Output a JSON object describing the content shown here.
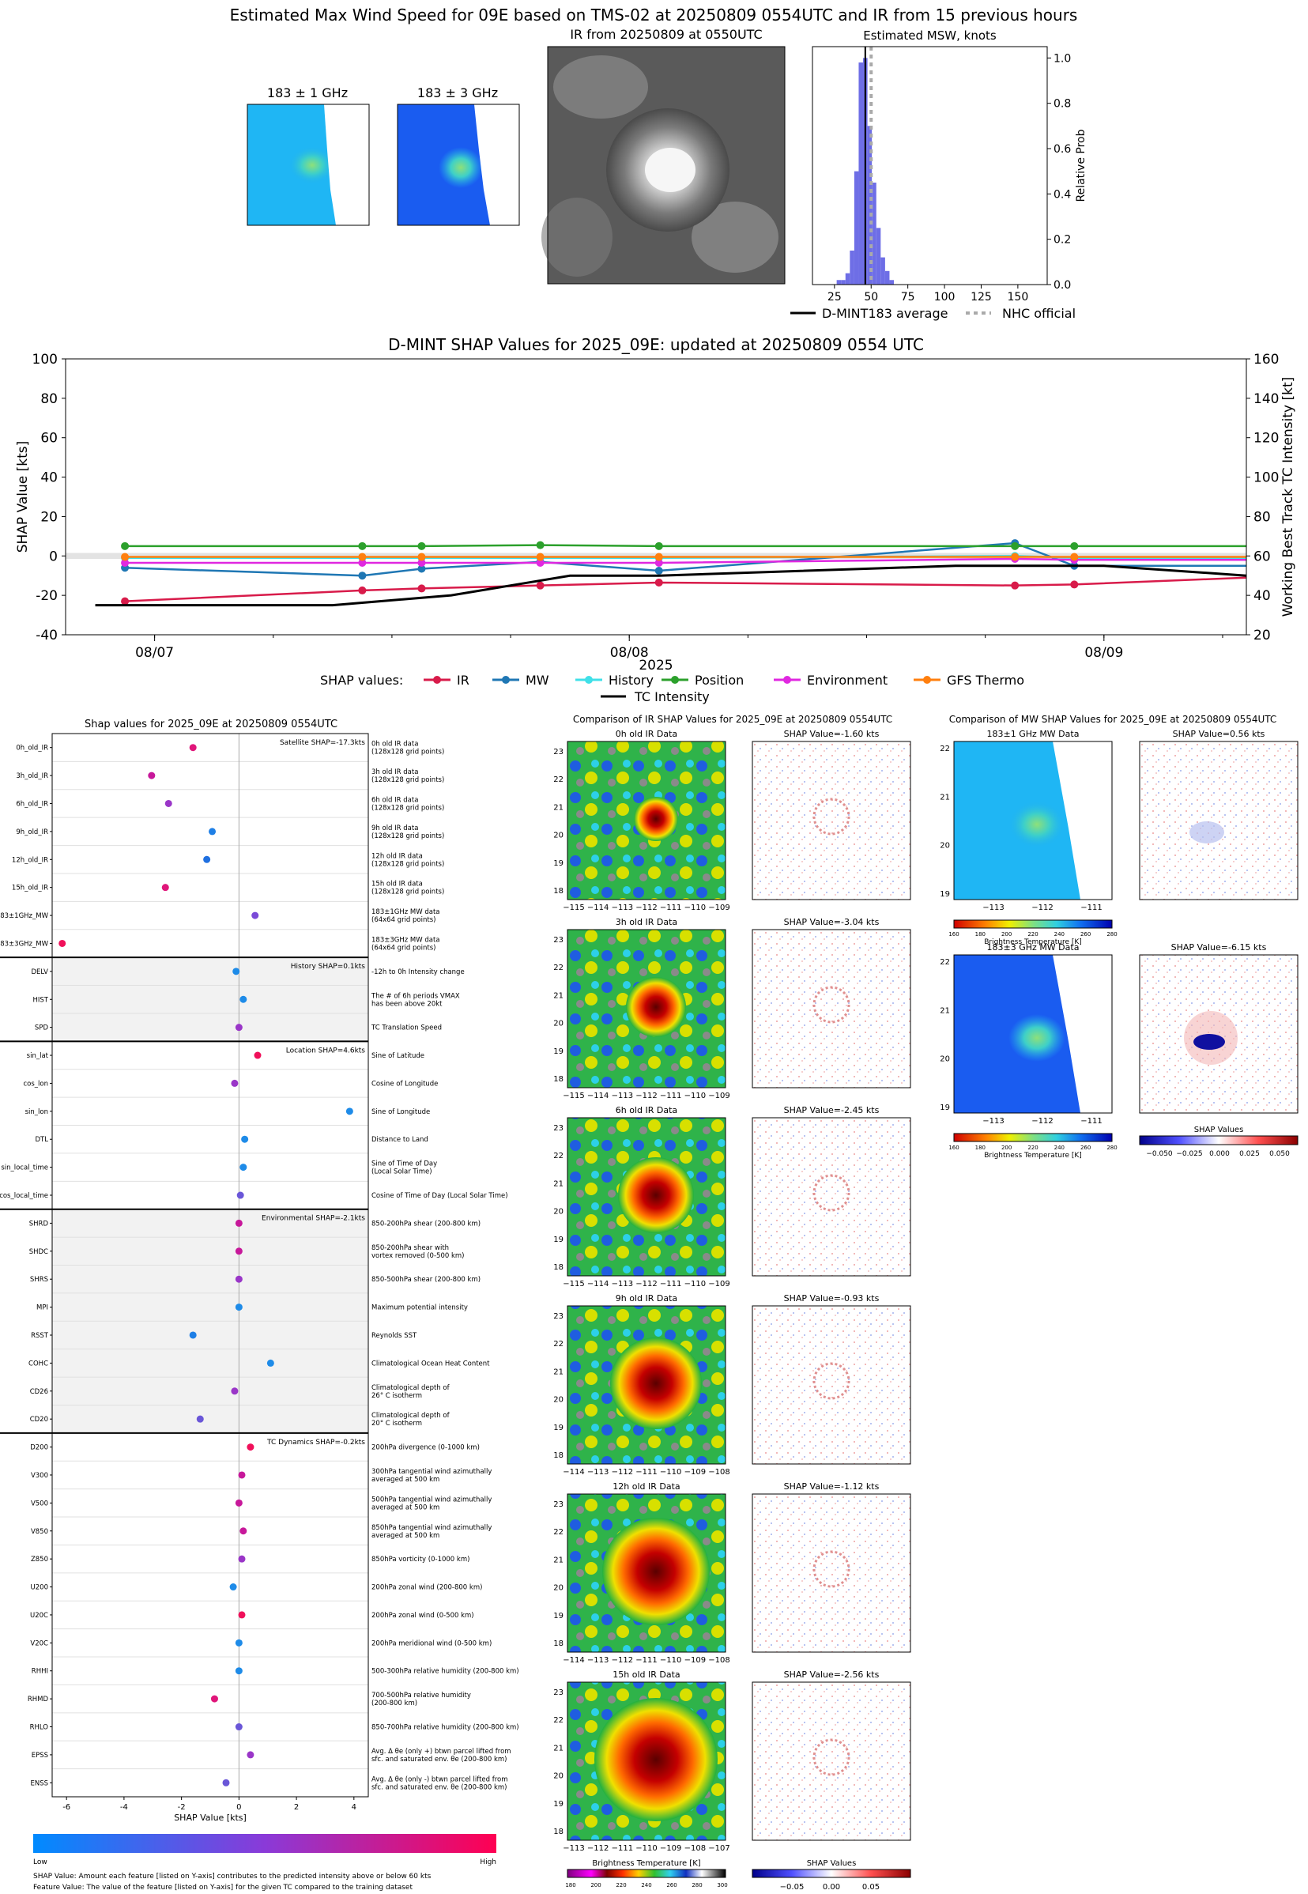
{
  "top": {
    "title": "Estimated Max Wind Speed for 09E based on TMS-02 at 20250809 0554UTC and IR from 15 previous hours",
    "mw1_title": "183 ± 1 GHz",
    "mw3_title": "183 ± 3 GHz",
    "ir_title": "IR from 20250809 at 0550UTC"
  },
  "shap_ts_legend": {
    "label": "SHAP values:",
    "items": [
      "IR",
      "MW",
      "History",
      "Position",
      "Environment",
      "GFS Thermo"
    ],
    "intensity": "TC Intensity"
  },
  "bar": {
    "title": "Shap values for 2025_09E at 20250809 0554UTC",
    "groups": [
      {
        "title": "Satellite SHAP=-17.3kts",
        "start": 0,
        "end": 8,
        "shaded": false
      },
      {
        "title": "History SHAP=0.1kts",
        "start": 8,
        "end": 11,
        "shaded": true
      },
      {
        "title": "Location SHAP=4.6kts",
        "start": 11,
        "end": 17,
        "shaded": false
      },
      {
        "title": "Environmental SHAP=-2.1kts",
        "start": 17,
        "end": 25,
        "shaded": true
      },
      {
        "title": "TC Dynamics SHAP=-0.2kts",
        "start": 25,
        "end": 38,
        "shaded": false
      }
    ],
    "features": [
      {
        "name": "0h_old_IR",
        "desc": [
          "0h old IR data",
          "(128x128 grid points)"
        ],
        "value": -1.6,
        "color": "#e0167a"
      },
      {
        "name": "3h_old_IR",
        "desc": [
          "3h old IR data",
          "(128x128 grid points)"
        ],
        "value": -3.04,
        "color": "#c7189a"
      },
      {
        "name": "6h_old_IR",
        "desc": [
          "6h old IR data",
          "(128x128 grid points)"
        ],
        "value": -2.45,
        "color": "#9a36c8"
      },
      {
        "name": "9h_old_IR",
        "desc": [
          "9h old IR data",
          "(128x128 grid points)"
        ],
        "value": -0.93,
        "color": "#1e7fe6"
      },
      {
        "name": "12h_old_IR",
        "desc": [
          "12h old IR data",
          "(128x128 grid points)"
        ],
        "value": -1.12,
        "color": "#2070e0"
      },
      {
        "name": "15h_old_IR",
        "desc": [
          "15h old IR data",
          "(128x128 grid points)"
        ],
        "value": -2.56,
        "color": "#e0167a"
      },
      {
        "name": "183±1GHz_MW",
        "desc": [
          "183±1GHz MW data",
          "(64x64 grid points)"
        ],
        "value": 0.56,
        "color": "#7a4ad8"
      },
      {
        "name": "183±3GHz_MW",
        "desc": [
          "183±3GHz MW data",
          "(64x64 grid points)"
        ],
        "value": -6.15,
        "color": "#f0105a"
      },
      {
        "name": "DELV",
        "desc": [
          "-12h to 0h Intensity change"
        ],
        "value": -0.1,
        "color": "#1e8be8"
      },
      {
        "name": "HIST",
        "desc": [
          "The # of 6h periods VMAX",
          "has been above 20kt"
        ],
        "value": 0.15,
        "color": "#1e8be8"
      },
      {
        "name": "SPD",
        "desc": [
          "TC Translation Speed"
        ],
        "value": 0.0,
        "color": "#9a36c8"
      },
      {
        "name": "sin_lat",
        "desc": [
          "Sine of Latitude"
        ],
        "value": 0.65,
        "color": "#f0105a"
      },
      {
        "name": "cos_lon",
        "desc": [
          "Cosine of Longitude"
        ],
        "value": -0.15,
        "color": "#9a36c8"
      },
      {
        "name": "sin_lon",
        "desc": [
          "Sine of Longitude"
        ],
        "value": 3.85,
        "color": "#1e8be8"
      },
      {
        "name": "DTL",
        "desc": [
          "Distance to Land"
        ],
        "value": 0.2,
        "color": "#1e8be8"
      },
      {
        "name": "sin_local_time",
        "desc": [
          "Sine of Time of Day",
          "(Local Solar Time)"
        ],
        "value": 0.15,
        "color": "#1e8be8"
      },
      {
        "name": "cos_local_time",
        "desc": [
          "Cosine of Time of Day (Local Solar Time)"
        ],
        "value": 0.05,
        "color": "#6a56d8"
      },
      {
        "name": "SHRD",
        "desc": [
          "850-200hPa shear (200-800 km)"
        ],
        "value": 0.0,
        "color": "#c7189a"
      },
      {
        "name": "SHDC",
        "desc": [
          "850-200hPa shear with",
          "vortex removed (0-500 km)"
        ],
        "value": 0.0,
        "color": "#c7189a"
      },
      {
        "name": "SHRS",
        "desc": [
          "850-500hPa shear (200-800 km)"
        ],
        "value": 0.0,
        "color": "#9a36c8"
      },
      {
        "name": "MPI",
        "desc": [
          "Maximum potential intensity"
        ],
        "value": 0.0,
        "color": "#1e8be8"
      },
      {
        "name": "RSST",
        "desc": [
          "Reynolds SST"
        ],
        "value": -1.6,
        "color": "#1e7fe6"
      },
      {
        "name": "COHC",
        "desc": [
          "Climatological Ocean Heat Content"
        ],
        "value": 1.1,
        "color": "#1e8be8"
      },
      {
        "name": "CD26",
        "desc": [
          "Climatological depth of",
          "26° C isotherm"
        ],
        "value": -0.15,
        "color": "#9a36c8"
      },
      {
        "name": "CD20",
        "desc": [
          "Climatological depth of",
          "20° C isotherm"
        ],
        "value": -1.35,
        "color": "#6a56d8"
      },
      {
        "name": "D200",
        "desc": [
          "200hPa divergence (0-1000 km)"
        ],
        "value": 0.4,
        "color": "#f0105a"
      },
      {
        "name": "V300",
        "desc": [
          "300hPa tangential wind azimuthally",
          "averaged at 500 km"
        ],
        "value": 0.1,
        "color": "#c7189a"
      },
      {
        "name": "V500",
        "desc": [
          "500hPa tangential wind azimuthally",
          "averaged at 500 km"
        ],
        "value": 0.0,
        "color": "#c7189a"
      },
      {
        "name": "V850",
        "desc": [
          "850hPa tangential wind azimuthally",
          "averaged at 500 km"
        ],
        "value": 0.15,
        "color": "#c7189a"
      },
      {
        "name": "Z850",
        "desc": [
          "850hPa vorticity (0-1000 km)"
        ],
        "value": 0.1,
        "color": "#9a36c8"
      },
      {
        "name": "U200",
        "desc": [
          "200hPa zonal wind (200-800 km)"
        ],
        "value": -0.2,
        "color": "#1e8be8"
      },
      {
        "name": "U20C",
        "desc": [
          "200hPa zonal wind (0-500 km)"
        ],
        "value": 0.1,
        "color": "#f0105a"
      },
      {
        "name": "V20C",
        "desc": [
          "200hPa meridional wind (0-500 km)"
        ],
        "value": 0.0,
        "color": "#1e8be8"
      },
      {
        "name": "RHHI",
        "desc": [
          "500-300hPa relative humidity (200-800 km)"
        ],
        "value": 0.0,
        "color": "#1e8be8"
      },
      {
        "name": "RHMD",
        "desc": [
          "700-500hPa relative humidity",
          "(200-800 km)"
        ],
        "value": -0.85,
        "color": "#e0167a"
      },
      {
        "name": "RHLO",
        "desc": [
          "850-700hPa relative humidity (200-800 km)"
        ],
        "value": 0.0,
        "color": "#6a56d8"
      },
      {
        "name": "EPSS",
        "desc": [
          "Avg. Δ θe (only +) btwn parcel lifted from",
          "sfc. and saturated env. θe (200-800 km)"
        ],
        "value": 0.4,
        "color": "#9a36c8"
      },
      {
        "name": "ENSS",
        "desc": [
          "Avg. Δ θe (only -) btwn parcel lifted from",
          "sfc. and saturated env. θe (200-800 km)"
        ],
        "value": -0.45,
        "color": "#6a56d8"
      }
    ],
    "cb_low": "Low",
    "cb_high": "High",
    "note1": "SHAP Value: Amount each feature [listed on Y-axis] contributes to the predicted intensity above or below 60 kts",
    "note2": "Feature Value: The value of the feature [listed on Y-axis] for the given TC compared to the training dataset"
  },
  "ir_compare": {
    "title": "Comparison of IR SHAP Values for 2025_09E at 20250809 0554UTC",
    "panels": [
      {
        "title": "0h old IR Data",
        "shap": "SHAP Value=-1.60 kts",
        "xt": [
          "−115",
          "−114",
          "−113",
          "−112",
          "−111",
          "−110",
          "−109"
        ]
      },
      {
        "title": "3h old IR Data",
        "shap": "SHAP Value=-3.04 kts",
        "xt": [
          "−115",
          "−114",
          "−113",
          "−112",
          "−111",
          "−110",
          "−109"
        ]
      },
      {
        "title": "6h old IR Data",
        "shap": "SHAP Value=-2.45 kts",
        "xt": [
          "−115",
          "−114",
          "−113",
          "−112",
          "−111",
          "−110",
          "−109"
        ]
      },
      {
        "title": "9h old IR Data",
        "shap": "SHAP Value=-0.93 kts",
        "xt": [
          "−114",
          "−113",
          "−112",
          "−111",
          "−110",
          "−109",
          "−108"
        ]
      },
      {
        "title": "12h old IR Data",
        "shap": "SHAP Value=-1.12 kts",
        "xt": [
          "−114",
          "−113",
          "−112",
          "−111",
          "−110",
          "−109",
          "−108"
        ]
      },
      {
        "title": "15h old IR Data",
        "shap": "SHAP Value=-2.56 kts",
        "xt": [
          "−113",
          "−112",
          "−111",
          "−110",
          "−109",
          "−108",
          "−107"
        ]
      }
    ],
    "yt": [
      "23",
      "22",
      "21",
      "20",
      "19",
      "18"
    ],
    "bt_ticks": [
      "180",
      "200",
      "220",
      "240",
      "260",
      "280",
      "300"
    ],
    "bt_label": "Brightness Temperature [K]",
    "sv_ticks": [
      "−0.05",
      "0.00",
      "0.05"
    ],
    "sv_label": "SHAP Values"
  },
  "mw_compare": {
    "title": "Comparison of MW SHAP Values for 2025_09E at 20250809 0554UTC",
    "panels": [
      {
        "title": "183±1 GHz MW Data",
        "shap": "SHAP Value=0.56 kts"
      },
      {
        "title": "183±3 GHz MW Data",
        "shap": "SHAP Value=-6.15 kts"
      }
    ],
    "xt": [
      "−113",
      "−112",
      "−111"
    ],
    "yt": [
      "22",
      "21",
      "20",
      "19"
    ],
    "bt_ticks": [
      "160",
      "180",
      "200",
      "220",
      "240",
      "260",
      "280"
    ],
    "bt_label": "Brightness Temperature [K]",
    "sv_ticks": [
      "−0.050",
      "−0.025",
      "0.000",
      "0.025",
      "0.050"
    ],
    "sv_label": "SHAP Values"
  },
  "chart_data": [
    {
      "type": "bar",
      "title": "Estimated MSW, knots",
      "xlabel": "",
      "ylabel": "Relative Prob",
      "xticks": [
        25,
        50,
        75,
        100,
        125,
        150
      ],
      "yticks": [
        0.0,
        0.2,
        0.4,
        0.6,
        0.8,
        1.0
      ],
      "xlim": [
        10,
        170
      ],
      "ylim": [
        0,
        1.05
      ],
      "bins": [
        [
          28,
          0.02
        ],
        [
          31,
          0.02
        ],
        [
          34,
          0.05
        ],
        [
          37,
          0.15
        ],
        [
          40,
          0.5
        ],
        [
          43,
          0.98
        ],
        [
          46,
          1.0
        ],
        [
          49,
          0.7
        ],
        [
          52,
          0.45
        ],
        [
          55,
          0.25
        ],
        [
          58,
          0.12
        ],
        [
          61,
          0.06
        ],
        [
          64,
          0.02
        ]
      ],
      "dmint_avg": 46,
      "nhc_official": 50,
      "legend": [
        "D-MINT183 average",
        "NHC official"
      ]
    },
    {
      "type": "line",
      "title": "D-MINT SHAP Values for 2025_09E: updated at 20250809 0554 UTC",
      "ylabel": "SHAP Value [kts]",
      "y2label": "Working Best Track TC Intensity [kt]",
      "xlabel": "2025",
      "xtick_labels": [
        {
          "t": 6.5,
          "label": "08/07"
        },
        {
          "t": 14.5,
          "label": "08/08"
        },
        {
          "t": 22.5,
          "label": "08/09"
        }
      ],
      "xlim": [
        5.0,
        24.9
      ],
      "ylim": [
        -40,
        100
      ],
      "yticks": [
        -40,
        -20,
        0,
        20,
        40,
        60,
        80,
        100
      ],
      "y2lim": [
        20,
        160
      ],
      "y2ticks": [
        20,
        40,
        60,
        80,
        100,
        120,
        140,
        160
      ],
      "t": [
        6,
        10,
        11,
        13,
        15,
        21,
        22,
        24.9
      ],
      "series": [
        {
          "name": "IR",
          "color": "#d81b4a",
          "values": [
            -23,
            -17.5,
            -16.5,
            -15,
            -13.5,
            -15,
            -14.5,
            -11
          ]
        },
        {
          "name": "MW",
          "color": "#1f77b4",
          "values": [
            -6,
            -10,
            -6.5,
            -3,
            -7.5,
            6.5,
            -5,
            -5
          ]
        },
        {
          "name": "History",
          "color": "#40e0e8",
          "values": [
            -1,
            -1,
            -1,
            -1,
            -1,
            0,
            -1,
            -1
          ]
        },
        {
          "name": "Position",
          "color": "#2ca02c",
          "values": [
            5,
            5,
            5,
            5.5,
            5,
            5,
            5,
            5
          ]
        },
        {
          "name": "Environment",
          "color": "#e028e0",
          "values": [
            -3.5,
            -3.5,
            -3.5,
            -3.5,
            -3.5,
            -1.5,
            -2,
            -2
          ]
        },
        {
          "name": "GFS Thermo",
          "color": "#ff7f0e",
          "values": [
            -0.5,
            -0.5,
            -0.5,
            -0.5,
            -0.5,
            -0.5,
            -0.5,
            -0.5
          ]
        }
      ],
      "intensity": {
        "name": "TC Intensity",
        "t": [
          5.5,
          9.5,
          11.5,
          12.5,
          13.5,
          15,
          20,
          22.5,
          24.9
        ],
        "values": [
          35,
          35,
          40,
          45,
          50,
          50,
          55,
          55,
          50
        ]
      }
    }
  ]
}
